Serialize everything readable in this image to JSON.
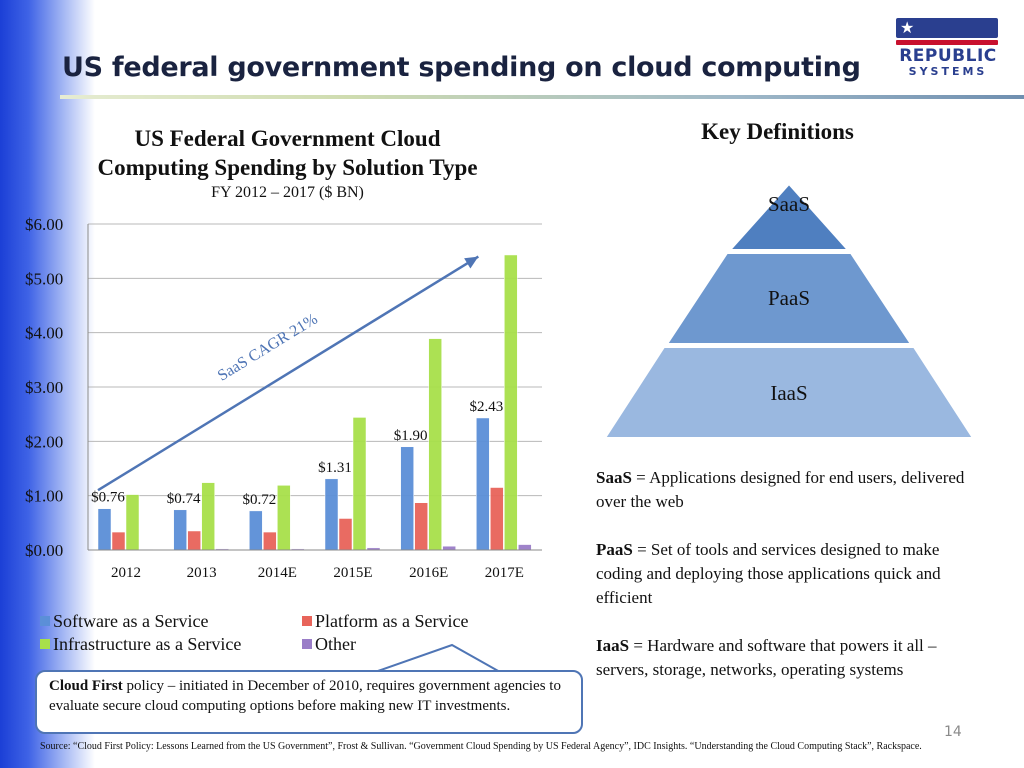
{
  "slide": {
    "title": "US federal government spending on cloud computing",
    "page_number": "14",
    "logo": {
      "line1": "REPUBLIC",
      "line2": "SYSTEMS"
    },
    "source": "Source: “Cloud First Policy: Lessons Learned from the US Government”, Frost & Sullivan. “Government Cloud Spending by US Federal Agency”, IDC Insights.  “Understanding the Cloud Computing Stack”, Rackspace."
  },
  "chart_data": {
    "type": "bar",
    "title": "US Federal Government Cloud Computing Spending by Solution Type",
    "title_line1": "US Federal Government Cloud",
    "title_line2": "Computing Spending by Solution Type",
    "subtitle": "FY 2012 – 2017 ($ BN)",
    "categories": [
      "2012",
      "2013",
      "2014E",
      "2015E",
      "2016E",
      "2017E"
    ],
    "ylim": [
      0,
      6
    ],
    "yticks": [
      "$0.00",
      "$1.00",
      "$2.00",
      "$3.00",
      "$4.00",
      "$5.00",
      "$6.00"
    ],
    "grid": true,
    "legend_position": "bottom",
    "series": [
      {
        "name": "Software as a Service",
        "color": "#5b8fd8",
        "values": [
          0.76,
          0.74,
          0.72,
          1.31,
          1.9,
          2.43
        ]
      },
      {
        "name": "Platform as a Service",
        "color": "#e8645a",
        "values": [
          0.33,
          0.35,
          0.33,
          0.58,
          0.87,
          1.15
        ]
      },
      {
        "name": "Infrastructure as a Service",
        "color": "#a8e04a",
        "values": [
          1.02,
          1.24,
          1.19,
          2.44,
          3.89,
          5.43
        ]
      },
      {
        "name": "Other",
        "color": "#9a7dc8",
        "values": [
          0.01,
          0.02,
          0.02,
          0.04,
          0.07,
          0.1
        ]
      }
    ],
    "data_labels": [
      "$0.76",
      "$0.74",
      "$0.72",
      "$1.31",
      "$1.90",
      "$2.43"
    ],
    "annotation": {
      "text": "SaaS CAGR 21%",
      "from": [
        0,
        1.1
      ],
      "to": [
        5,
        5.4
      ]
    }
  },
  "callout": {
    "bold": "Cloud First",
    "text": " policy – initiated in December of 2010, requires government agencies to evaluate secure cloud computing options before making new IT investments."
  },
  "key_definitions": {
    "title": "Key Definitions",
    "pyramid": [
      {
        "label": "SaaS",
        "color": "#4f7fc0"
      },
      {
        "label": "PaaS",
        "color": "#6e98cf"
      },
      {
        "label": "IaaS",
        "color": "#9ab8e0"
      }
    ],
    "items": [
      {
        "term": "SaaS",
        "definition": " = Applications designed for end users, delivered over the web"
      },
      {
        "term": "PaaS",
        "definition": " = Set of tools and services designed to make  coding and deploying those applications quick and efficient"
      },
      {
        "term": "IaaS",
        "definition": " = Hardware and software that powers it all – servers, storage, networks, operating systems"
      }
    ]
  }
}
